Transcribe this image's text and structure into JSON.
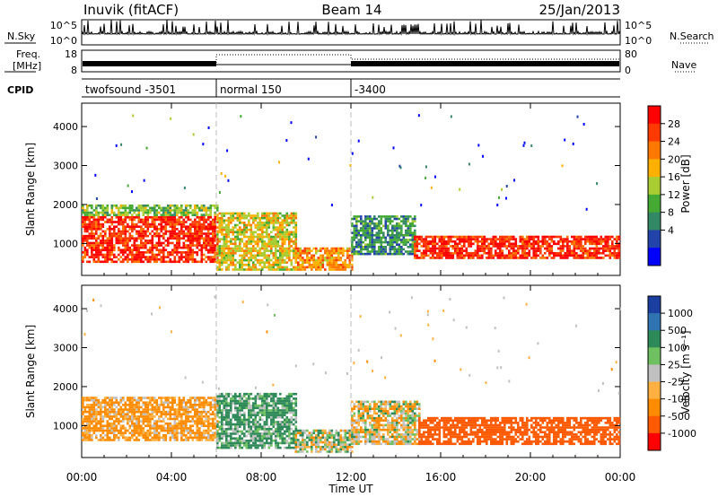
{
  "header": {
    "title": "Inuvik (fitACF)",
    "beam": "Beam 14",
    "date": "25/Jan/2013"
  },
  "noise_panel": {
    "left_label": "N.Sky",
    "left_ticks": [
      "10^5",
      "10^0"
    ],
    "right_label": "N.Search",
    "right_ticks": [
      "10^5",
      "10^0"
    ]
  },
  "freq_panel": {
    "left_label_1": "Freq.",
    "left_label_2": "[MHz]",
    "left_ticks": [
      "18",
      "8"
    ],
    "right_label": "Nave",
    "right_ticks": [
      "80",
      "0"
    ]
  },
  "cpid_panel": {
    "label": "CPID",
    "segments": [
      {
        "start_hour": 0,
        "label": "twofsound -3501"
      },
      {
        "start_hour": 6,
        "label": "normal 150"
      },
      {
        "start_hour": 12,
        "label": "-3400"
      }
    ]
  },
  "power_panel": {
    "ylabel": "Slant Range [km]",
    "colorbar_label": "Power [dB]",
    "colorbar_ticks": [
      "28",
      "24",
      "20",
      "16",
      "12",
      "8",
      "4"
    ],
    "colorbar_colors": [
      "#ff0000",
      "#ff3a00",
      "#ff7800",
      "#ffb000",
      "#aacc33",
      "#44aa33",
      "#338866",
      "#2244aa",
      "#0000ff"
    ]
  },
  "velocity_panel": {
    "ylabel": "Slant Range [km]",
    "colorbar_label": "Velocity [m s⁻¹]",
    "colorbar_ticks": [
      "1000",
      "500",
      "100",
      "25",
      "-25",
      "-100",
      "-500",
      "-1000"
    ],
    "colorbar_colors": [
      "#1a3fa0",
      "#2f73b0",
      "#2f8a5a",
      "#6fc060",
      "#c0c0c0",
      "#ffb040",
      "#ff8c00",
      "#ff5a00",
      "#ff0000"
    ]
  },
  "x_axis": {
    "label": "Time UT",
    "ticks": [
      "00:00",
      "04:00",
      "08:00",
      "12:00",
      "16:00",
      "20:00",
      "00:00"
    ]
  },
  "chart_data": {
    "type": "heatmap",
    "title": "Inuvik (fitACF)",
    "subtitle": "Beam 14",
    "date": "25/Jan/2013",
    "xlabel": "Time UT",
    "ylabel": "Slant Range [km]",
    "xlim_hours": [
      0,
      24
    ],
    "ylim_km": [
      180,
      4600
    ],
    "y_ticks_km": [
      1000,
      2000,
      3000,
      4000
    ],
    "mode_boundaries_hours": [
      6,
      12
    ],
    "power_echo_regions": [
      {
        "t0": 0.0,
        "t1": 6.0,
        "r0": 500,
        "r1": 1700,
        "power_db": 28
      },
      {
        "t0": 0.0,
        "t1": 6.0,
        "r0": 1700,
        "r1": 2000,
        "power_db": 14
      },
      {
        "t0": 6.0,
        "t1": 9.5,
        "r0": 300,
        "r1": 1800,
        "power_db": 18
      },
      {
        "t0": 9.5,
        "t1": 12.0,
        "r0": 300,
        "r1": 900,
        "power_db": 22
      },
      {
        "t0": 12.0,
        "t1": 14.8,
        "r0": 700,
        "r1": 1700,
        "power_db": 10
      },
      {
        "t0": 14.8,
        "t1": 24.0,
        "r0": 600,
        "r1": 1200,
        "power_db": 28
      }
    ],
    "velocity_echo_regions": [
      {
        "t0": 0.0,
        "t1": 6.0,
        "r0": 600,
        "r1": 1700,
        "velocity": -100
      },
      {
        "t0": 6.0,
        "t1": 9.5,
        "r0": 400,
        "r1": 1800,
        "velocity": 100
      },
      {
        "t0": 9.5,
        "t1": 12.0,
        "r0": 300,
        "r1": 900,
        "velocity": 0
      },
      {
        "t0": 12.0,
        "t1": 15.0,
        "r0": 500,
        "r1": 1600,
        "velocity": -25
      },
      {
        "t0": 15.0,
        "t1": 24.0,
        "r0": 500,
        "r1": 1200,
        "velocity": -500
      }
    ]
  }
}
